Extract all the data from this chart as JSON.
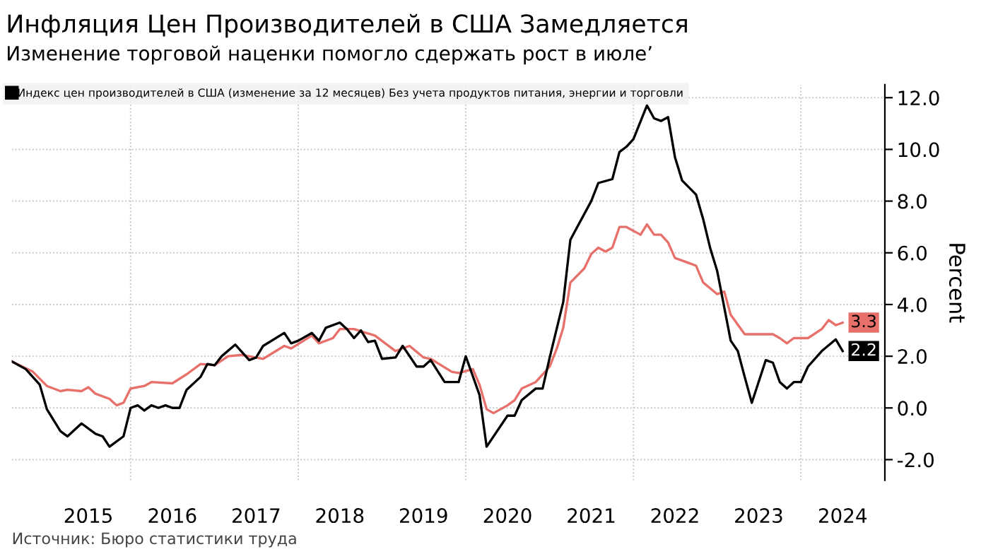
{
  "chart_data": {
    "type": "line",
    "title": "Инфляция Цен Производителей в США Замедляется",
    "subtitle": "Изменение торговой наценки помогло сдержать рост в июле’",
    "ylabel": "Percent",
    "annotations": [
      "Источник: Бюро статистики труда"
    ],
    "series": [
      {
        "name": "Индекс цен производителей в США (изменение за 12 месяцев) Без учета продуктов питания, энергии и торговли",
        "color": "#000000",
        "x": [
          "2014-08",
          "2014-10",
          "2014-12",
          "2015-01",
          "2015-03",
          "2015-04",
          "2015-06",
          "2015-08",
          "2015-09",
          "2015-10",
          "2015-12",
          "2016-01",
          "2016-02",
          "2016-03",
          "2016-04",
          "2016-05",
          "2016-06",
          "2016-07",
          "2016-08",
          "2016-09",
          "2016-11",
          "2016-12",
          "2017-01",
          "2017-02",
          "2017-04",
          "2017-06",
          "2017-07",
          "2017-08",
          "2017-11",
          "2017-12",
          "2018-01",
          "2018-03",
          "2018-04",
          "2018-05",
          "2018-07",
          "2018-08",
          "2018-09",
          "2018-10",
          "2018-11",
          "2018-12",
          "2019-01",
          "2019-03",
          "2019-04",
          "2019-06",
          "2019-07",
          "2019-08",
          "2019-10",
          "2019-11",
          "2019-12",
          "2020-01",
          "2020-03",
          "2020-04",
          "2020-07",
          "2020-08",
          "2020-09",
          "2020-11",
          "2020-12",
          "2021-01",
          "2021-03",
          "2021-04",
          "2021-05",
          "2021-07",
          "2021-08",
          "2021-10",
          "2021-11",
          "2021-12",
          "2022-01",
          "2022-03",
          "2022-04",
          "2022-05",
          "2022-06",
          "2022-07",
          "2022-08",
          "2022-10",
          "2022-11",
          "2022-12",
          "2023-01",
          "2023-03",
          "2023-04",
          "2023-05",
          "2023-06",
          "2023-08",
          "2023-09",
          "2023-10",
          "2023-11",
          "2023-12",
          "2024-01",
          "2024-02",
          "2024-04",
          "2024-06",
          "2024-07"
        ],
        "values": [
          1.8,
          1.5,
          0.9,
          -0.05,
          -0.9,
          -1.1,
          -0.6,
          -1.0,
          -1.1,
          -1.5,
          -1.1,
          0.0,
          0.1,
          -0.1,
          0.1,
          0.0,
          0.1,
          0.0,
          0.0,
          0.7,
          1.2,
          1.7,
          1.65,
          2.0,
          2.45,
          1.85,
          1.95,
          2.4,
          2.9,
          2.5,
          2.6,
          2.9,
          2.6,
          3.1,
          3.3,
          3.05,
          2.7,
          3.0,
          2.55,
          2.6,
          1.9,
          1.95,
          2.4,
          1.6,
          1.6,
          1.85,
          1.0,
          1.0,
          1.0,
          2.0,
          0.5,
          -1.5,
          -0.3,
          -0.3,
          0.3,
          0.75,
          0.75,
          1.95,
          4.1,
          6.5,
          7.0,
          8.0,
          8.7,
          8.85,
          9.9,
          10.1,
          10.4,
          11.7,
          11.2,
          11.1,
          11.25,
          9.7,
          8.8,
          8.25,
          7.3,
          6.2,
          5.3,
          2.6,
          2.2,
          1.2,
          0.2,
          1.85,
          1.75,
          1.0,
          0.75,
          1.0,
          1.0,
          1.6,
          2.2,
          2.65,
          2.2
        ],
        "value_labels": [
          null,
          null,
          null,
          null,
          null,
          null,
          null,
          null,
          null,
          null,
          null,
          null,
          null,
          null,
          null,
          null,
          null,
          null,
          null,
          null,
          null,
          null,
          null,
          null,
          null,
          null,
          null,
          null,
          null,
          null,
          null,
          null,
          null,
          null,
          null,
          null,
          null,
          null,
          null,
          null,
          null,
          null,
          null,
          null,
          null,
          null,
          null,
          null,
          null,
          null,
          null,
          null,
          null,
          null,
          null,
          null,
          null,
          null,
          null,
          null,
          null,
          null,
          null,
          null,
          null,
          null,
          null,
          null,
          null,
          null,
          null,
          null,
          null,
          null,
          null,
          null,
          null,
          null,
          null,
          null,
          null,
          null,
          null,
          null,
          null,
          null,
          null,
          null,
          null,
          null,
          "2.2"
        ]
      },
      {
        "color": "#e8706b",
        "x": [
          "2014-08",
          "2014-11",
          "2015-01",
          "2015-03",
          "2015-04",
          "2015-06",
          "2015-07",
          "2015-08",
          "2015-10",
          "2015-11",
          "2015-12",
          "2016-01",
          "2016-03",
          "2016-04",
          "2016-07",
          "2016-09",
          "2016-11",
          "2017-01",
          "2017-03",
          "2017-05",
          "2017-08",
          "2017-11",
          "2017-12",
          "2018-03",
          "2018-04",
          "2018-06",
          "2018-07",
          "2018-09",
          "2018-12",
          "2019-03",
          "2019-05",
          "2019-07",
          "2019-08",
          "2019-11",
          "2019-12",
          "2020-02",
          "2020-03",
          "2020-04",
          "2020-05",
          "2020-07",
          "2020-08",
          "2020-09",
          "2020-11",
          "2021-01",
          "2021-02",
          "2021-03",
          "2021-04",
          "2021-06",
          "2021-07",
          "2021-08",
          "2021-09",
          "2021-10",
          "2021-11",
          "2021-12",
          "2022-02",
          "2022-03",
          "2022-04",
          "2022-05",
          "2022-06",
          "2022-07",
          "2022-09",
          "2022-10",
          "2022-11",
          "2023-01",
          "2023-02",
          "2023-03",
          "2023-05",
          "2023-09",
          "2023-10",
          "2023-11",
          "2023-12",
          "2024-02",
          "2024-04",
          "2024-05",
          "2024-06",
          "2024-07"
        ],
        "values": [
          1.8,
          1.4,
          0.85,
          0.65,
          0.7,
          0.65,
          0.8,
          0.55,
          0.35,
          0.1,
          0.2,
          0.75,
          0.85,
          1.0,
          0.95,
          1.3,
          1.7,
          1.65,
          2.0,
          2.05,
          1.9,
          2.4,
          2.3,
          2.8,
          2.5,
          2.7,
          3.05,
          3.05,
          2.8,
          2.2,
          2.4,
          1.95,
          1.9,
          1.4,
          1.35,
          1.5,
          0.9,
          -0.05,
          -0.2,
          0.1,
          0.3,
          0.75,
          1.0,
          1.6,
          2.3,
          3.1,
          4.85,
          5.4,
          5.95,
          6.2,
          6.05,
          6.2,
          7.0,
          7.0,
          6.7,
          7.1,
          6.7,
          6.7,
          6.4,
          5.8,
          5.6,
          5.5,
          4.85,
          4.4,
          4.5,
          3.6,
          2.85,
          2.85,
          2.7,
          2.5,
          2.7,
          2.7,
          3.05,
          3.4,
          3.2,
          3.3
        ],
        "value_labels": [
          null,
          null,
          null,
          null,
          null,
          null,
          null,
          null,
          null,
          null,
          null,
          null,
          null,
          null,
          null,
          null,
          null,
          null,
          null,
          null,
          null,
          null,
          null,
          null,
          null,
          null,
          null,
          null,
          null,
          null,
          null,
          null,
          null,
          null,
          null,
          null,
          null,
          null,
          null,
          null,
          null,
          null,
          null,
          null,
          null,
          null,
          null,
          null,
          null,
          null,
          null,
          null,
          null,
          null,
          null,
          null,
          null,
          null,
          null,
          null,
          null,
          null,
          null,
          null,
          null,
          null,
          null,
          null,
          null,
          null,
          null,
          null,
          null,
          null,
          null,
          "3.3"
        ]
      }
    ],
    "xlim": [
      "2014-08",
      "2025-01"
    ],
    "xticks": [
      {
        "value": "2015-07",
        "label": "2015"
      },
      {
        "value": "2016-01",
        "label": null
      },
      {
        "value": "2016-07",
        "label": "2016"
      },
      {
        "value": "2017-07",
        "label": "2017"
      },
      {
        "value": "2018-01",
        "label": null
      },
      {
        "value": "2018-07",
        "label": "2018"
      },
      {
        "value": "2019-07",
        "label": "2019"
      },
      {
        "value": "2020-01",
        "label": null
      },
      {
        "value": "2020-07",
        "label": "2020"
      },
      {
        "value": "2021-07",
        "label": "2021"
      },
      {
        "value": "2022-01",
        "label": null
      },
      {
        "value": "2022-07",
        "label": "2022"
      },
      {
        "value": "2023-07",
        "label": "2023"
      },
      {
        "value": "2024-01",
        "label": null
      },
      {
        "value": "2024-07",
        "label": "2024"
      }
    ],
    "ylim": [
      -2.8,
      12.5
    ],
    "yticks": [
      {
        "value": -2,
        "label": "-2.0"
      },
      {
        "value": 0,
        "label": "0.0"
      },
      {
        "value": 2,
        "label": "2.0"
      },
      {
        "value": 4,
        "label": "4.0"
      },
      {
        "value": 6,
        "label": "6.0"
      },
      {
        "value": 8,
        "label": "8.0"
      },
      {
        "value": 10,
        "label": "10.0"
      },
      {
        "value": 12,
        "label": "12.0"
      }
    ],
    "grid": true,
    "legend": "top left",
    "marker": "none",
    "line_style": "solid"
  }
}
